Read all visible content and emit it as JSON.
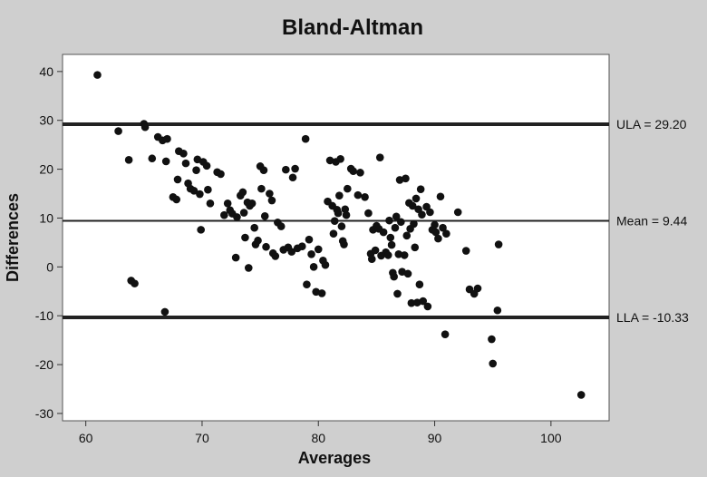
{
  "chart_data": {
    "type": "scatter",
    "title": "Bland-Altman",
    "xlabel": "Averages",
    "ylabel": "Differences",
    "xlim": [
      58,
      105
    ],
    "ylim": [
      -31.5,
      43.5
    ],
    "xticks": [
      60,
      70,
      80,
      90,
      100
    ],
    "yticks": [
      -30,
      -20,
      -10,
      0,
      10,
      20,
      30,
      40
    ],
    "grid": false,
    "reference_lines": [
      {
        "label": "ULA = 29.20",
        "y": 29.2
      },
      {
        "label": "Mean = 9.44",
        "y": 9.44
      },
      {
        "label": "LLA = -10.33",
        "y": -10.33
      }
    ],
    "points": [
      [
        61.0,
        39.3
      ],
      [
        62.8,
        27.8
      ],
      [
        63.7,
        21.9
      ],
      [
        63.9,
        -2.8
      ],
      [
        64.2,
        -3.4
      ],
      [
        65.0,
        29.3
      ],
      [
        65.1,
        28.6
      ],
      [
        65.7,
        22.2
      ],
      [
        66.2,
        26.6
      ],
      [
        66.6,
        25.9
      ],
      [
        67.0,
        26.2
      ],
      [
        66.8,
        -9.2
      ],
      [
        66.9,
        21.6
      ],
      [
        67.5,
        14.3
      ],
      [
        67.8,
        13.8
      ],
      [
        67.9,
        17.9
      ],
      [
        68.0,
        23.7
      ],
      [
        68.4,
        23.2
      ],
      [
        68.6,
        21.2
      ],
      [
        68.8,
        17.1
      ],
      [
        69.0,
        16.0
      ],
      [
        69.3,
        15.6
      ],
      [
        69.5,
        19.8
      ],
      [
        69.6,
        22.0
      ],
      [
        69.8,
        14.9
      ],
      [
        69.9,
        7.6
      ],
      [
        70.1,
        21.5
      ],
      [
        70.4,
        20.7
      ],
      [
        70.5,
        15.8
      ],
      [
        70.7,
        13.0
      ],
      [
        71.3,
        19.4
      ],
      [
        71.6,
        19.0
      ],
      [
        71.9,
        10.6
      ],
      [
        72.2,
        13.0
      ],
      [
        72.4,
        11.6
      ],
      [
        72.6,
        10.9
      ],
      [
        72.9,
        1.9
      ],
      [
        73.0,
        10.2
      ],
      [
        73.3,
        14.6
      ],
      [
        73.5,
        15.3
      ],
      [
        73.6,
        11.1
      ],
      [
        73.7,
        6.0
      ],
      [
        73.9,
        13.2
      ],
      [
        74.0,
        -0.2
      ],
      [
        74.1,
        12.5
      ],
      [
        74.3,
        13.0
      ],
      [
        74.5,
        8.0
      ],
      [
        74.6,
        4.6
      ],
      [
        74.8,
        5.4
      ],
      [
        75.0,
        20.6
      ],
      [
        75.1,
        16.0
      ],
      [
        75.3,
        19.8
      ],
      [
        75.4,
        10.4
      ],
      [
        75.5,
        4.1
      ],
      [
        75.8,
        15.0
      ],
      [
        76.0,
        13.6
      ],
      [
        76.1,
        2.8
      ],
      [
        76.3,
        2.2
      ],
      [
        76.5,
        9.1
      ],
      [
        76.8,
        8.3
      ],
      [
        77.0,
        3.5
      ],
      [
        77.2,
        19.9
      ],
      [
        77.4,
        4.0
      ],
      [
        77.7,
        3.1
      ],
      [
        77.8,
        18.3
      ],
      [
        78.0,
        20.1
      ],
      [
        78.2,
        3.8
      ],
      [
        78.6,
        4.2
      ],
      [
        78.9,
        26.2
      ],
      [
        79.0,
        -3.6
      ],
      [
        79.2,
        5.6
      ],
      [
        79.4,
        2.6
      ],
      [
        79.6,
        0.0
      ],
      [
        79.8,
        -5.1
      ],
      [
        80.0,
        3.6
      ],
      [
        80.3,
        -5.4
      ],
      [
        80.4,
        1.3
      ],
      [
        80.6,
        0.4
      ],
      [
        80.8,
        13.4
      ],
      [
        81.0,
        21.8
      ],
      [
        81.2,
        12.5
      ],
      [
        81.3,
        6.8
      ],
      [
        81.4,
        9.4
      ],
      [
        81.5,
        21.5
      ],
      [
        81.6,
        11.7
      ],
      [
        81.7,
        11.0
      ],
      [
        81.8,
        14.6
      ],
      [
        81.9,
        22.1
      ],
      [
        82.0,
        8.3
      ],
      [
        82.1,
        5.3
      ],
      [
        82.2,
        4.6
      ],
      [
        82.3,
        11.8
      ],
      [
        82.4,
        10.6
      ],
      [
        82.5,
        16.0
      ],
      [
        82.8,
        20.1
      ],
      [
        83.0,
        19.6
      ],
      [
        83.4,
        14.7
      ],
      [
        83.6,
        19.3
      ],
      [
        84.0,
        14.3
      ],
      [
        84.3,
        11.0
      ],
      [
        84.5,
        2.7
      ],
      [
        84.6,
        1.6
      ],
      [
        84.7,
        7.6
      ],
      [
        84.9,
        3.4
      ],
      [
        85.0,
        8.4
      ],
      [
        85.2,
        7.8
      ],
      [
        85.3,
        22.4
      ],
      [
        85.4,
        2.3
      ],
      [
        85.6,
        7.1
      ],
      [
        85.8,
        3.0
      ],
      [
        86.0,
        2.4
      ],
      [
        86.1,
        9.5
      ],
      [
        86.2,
        6.0
      ],
      [
        86.3,
        4.5
      ],
      [
        86.4,
        -1.2
      ],
      [
        86.5,
        -2.0
      ],
      [
        86.6,
        8.0
      ],
      [
        86.7,
        10.3
      ],
      [
        86.8,
        -5.5
      ],
      [
        86.9,
        2.6
      ],
      [
        87.0,
        17.8
      ],
      [
        87.1,
        9.2
      ],
      [
        87.2,
        -1.0
      ],
      [
        87.4,
        2.4
      ],
      [
        87.5,
        18.1
      ],
      [
        87.6,
        6.4
      ],
      [
        87.7,
        -1.4
      ],
      [
        87.8,
        13.1
      ],
      [
        87.9,
        7.8
      ],
      [
        88.0,
        -7.4
      ],
      [
        88.1,
        12.5
      ],
      [
        88.2,
        8.8
      ],
      [
        88.3,
        4.0
      ],
      [
        88.4,
        14.0
      ],
      [
        88.5,
        -7.3
      ],
      [
        88.6,
        11.8
      ],
      [
        88.7,
        -3.6
      ],
      [
        88.8,
        15.9
      ],
      [
        88.9,
        10.7
      ],
      [
        89.0,
        -7.0
      ],
      [
        89.3,
        12.3
      ],
      [
        89.4,
        -8.1
      ],
      [
        89.6,
        11.2
      ],
      [
        89.8,
        7.6
      ],
      [
        90.0,
        8.6
      ],
      [
        90.1,
        7.1
      ],
      [
        90.3,
        5.8
      ],
      [
        90.5,
        14.4
      ],
      [
        90.7,
        8.0
      ],
      [
        90.9,
        -13.8
      ],
      [
        91.0,
        6.8
      ],
      [
        92.0,
        11.2
      ],
      [
        92.7,
        3.3
      ],
      [
        93.0,
        -4.6
      ],
      [
        93.4,
        -5.5
      ],
      [
        93.7,
        -4.4
      ],
      [
        94.9,
        -14.8
      ],
      [
        95.0,
        -19.8
      ],
      [
        95.4,
        -8.9
      ],
      [
        95.5,
        4.6
      ],
      [
        102.6,
        -26.2
      ]
    ]
  }
}
